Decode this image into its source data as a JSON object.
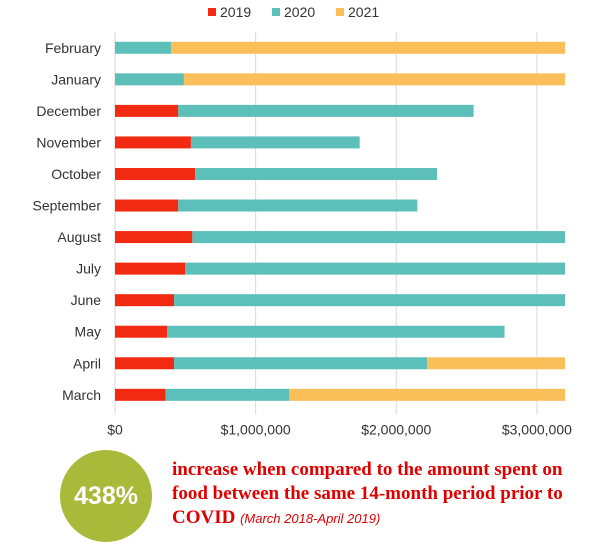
{
  "chart_data": {
    "type": "bar",
    "orientation": "horizontal",
    "stacked": true,
    "title": "",
    "xlabel": "",
    "ylabel": "",
    "xlim": [
      0,
      3200000
    ],
    "x_ticks": [
      0,
      1000000,
      2000000,
      3000000
    ],
    "x_tick_labels": [
      "$0",
      "$1,000,000",
      "$2,000,000",
      "$3,000,000"
    ],
    "grid": true,
    "legend_position": "top",
    "categories": [
      "February",
      "January",
      "December",
      "November",
      "October",
      "September",
      "August",
      "July",
      "June",
      "May",
      "April",
      "March"
    ],
    "series": [
      {
        "name": "2019",
        "color": "#f22a12",
        "values": [
          0,
          0,
          450000,
          540000,
          570000,
          450000,
          550000,
          500000,
          420000,
          370000,
          420000,
          360000
        ]
      },
      {
        "name": "2020",
        "color": "#5dbfb9",
        "values": [
          400000,
          490000,
          2100000,
          1200000,
          1720000,
          1700000,
          2650000,
          2700000,
          2780000,
          2400000,
          1800000,
          880000
        ]
      },
      {
        "name": "2021",
        "color": "#fbbf5a",
        "values": [
          2800000,
          2710000,
          0,
          0,
          0,
          0,
          0,
          0,
          0,
          0,
          980000,
          1960000
        ]
      }
    ]
  },
  "callout": {
    "value": "438%",
    "text": "increase when compared to the amount spent on food between the same 14-month period prior to COVID",
    "note": "(March 2018-April 2019)"
  }
}
